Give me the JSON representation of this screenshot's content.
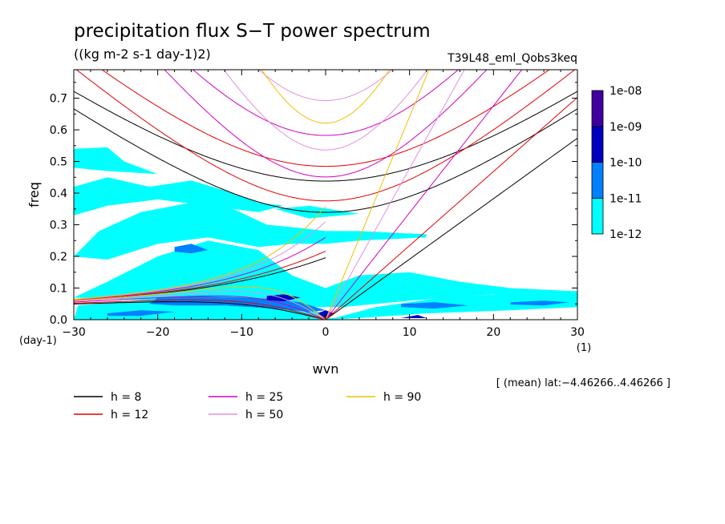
{
  "chart_data": {
    "type": "heatmap",
    "title": "precipitation flux S−T power spectrum",
    "subtitle": "((kg m-2 s-1 day-1)2)",
    "experiment": "T39L48_eml_Qobs3keq",
    "xlabel": "wvn",
    "ylabel": "freq",
    "x_unit": "(1)",
    "y_unit": "(day-1)",
    "xlim": [
      -30,
      30
    ],
    "ylim": [
      0,
      0.79
    ],
    "x_ticks": [
      "−30",
      "−20",
      "−10",
      "0",
      "10",
      "20",
      "30"
    ],
    "x_tick_values": [
      -30,
      -20,
      -10,
      0,
      10,
      20,
      30
    ],
    "y_ticks": [
      "0.0",
      "0.1",
      "0.2",
      "0.3",
      "0.4",
      "0.5",
      "0.6",
      "0.7"
    ],
    "y_tick_values": [
      0,
      0.1,
      0.2,
      0.3,
      0.4,
      0.5,
      0.6,
      0.7
    ],
    "annotation": "[ (mean) lat:−4.46266..4.46266 ]",
    "colorbar": {
      "labels": [
        "1e-12",
        "1e-11",
        "1e-10",
        "1e-09",
        "1e-08"
      ],
      "colors": [
        "#00ffff",
        "#0080ff",
        "#0000c0",
        "#4000a0"
      ]
    },
    "contour_regions": [
      {
        "level": 0,
        "polygon": [
          [
            -29.5,
            0.045
          ],
          [
            -24,
            0.058
          ],
          [
            -14,
            0.07
          ],
          [
            -6,
            0.072
          ],
          [
            -2,
            0.05
          ],
          [
            0,
            0.005
          ],
          [
            1,
            0.005
          ],
          [
            6,
            0.04
          ],
          [
            14,
            0.07
          ],
          [
            24,
            0.085
          ],
          [
            30,
            0.09
          ],
          [
            30,
            0.04
          ],
          [
            22,
            0.03
          ],
          [
            12,
            0.02
          ],
          [
            4,
            0.005
          ],
          [
            0,
            0
          ],
          [
            -30,
            0
          ]
        ]
      },
      {
        "level": 0,
        "polygon": [
          [
            -30,
            0.07
          ],
          [
            -26,
            0.12
          ],
          [
            -20,
            0.2
          ],
          [
            -14,
            0.25
          ],
          [
            -8,
            0.22
          ],
          [
            -4,
            0.14
          ],
          [
            0,
            0.1
          ],
          [
            4,
            0.14
          ],
          [
            10,
            0.15
          ],
          [
            16,
            0.12
          ],
          [
            22,
            0.1
          ],
          [
            30,
            0.09
          ],
          [
            30,
            0.07
          ],
          [
            20,
            0.08
          ],
          [
            10,
            0.06
          ],
          [
            2,
            0.04
          ],
          [
            -2,
            0.04
          ],
          [
            -10,
            0.06
          ],
          [
            -20,
            0.06
          ]
        ]
      },
      {
        "level": 0,
        "polygon": [
          [
            -30,
            0.2
          ],
          [
            -27,
            0.28
          ],
          [
            -22,
            0.34
          ],
          [
            -16,
            0.37
          ],
          [
            -11,
            0.35
          ],
          [
            -7,
            0.3
          ],
          [
            -3,
            0.29
          ],
          [
            0,
            0.28
          ],
          [
            4,
            0.28
          ],
          [
            12,
            0.27
          ],
          [
            12,
            0.26
          ],
          [
            4,
            0.25
          ],
          [
            0,
            0.24
          ],
          [
            -4,
            0.24
          ],
          [
            -8,
            0.23
          ],
          [
            -14,
            0.26
          ],
          [
            -20,
            0.24
          ],
          [
            -26,
            0.19
          ]
        ]
      },
      {
        "level": 0,
        "polygon": [
          [
            -30,
            0.42
          ],
          [
            -26,
            0.45
          ],
          [
            -21,
            0.42
          ],
          [
            -16,
            0.44
          ],
          [
            -11,
            0.4
          ],
          [
            -8,
            0.37
          ],
          [
            -5,
            0.36
          ],
          [
            -8,
            0.34
          ],
          [
            -14,
            0.36
          ],
          [
            -20,
            0.38
          ],
          [
            -26,
            0.36
          ],
          [
            -30,
            0.33
          ]
        ]
      },
      {
        "level": 0,
        "polygon": [
          [
            -30,
            0.54
          ],
          [
            -26,
            0.545
          ],
          [
            -24,
            0.5
          ],
          [
            -20,
            0.46
          ],
          [
            -26,
            0.47
          ],
          [
            -30,
            0.48
          ]
        ]
      },
      {
        "level": 0,
        "polygon": [
          [
            -6,
            0.35
          ],
          [
            -2,
            0.36
          ],
          [
            4,
            0.335
          ],
          [
            -2,
            0.32
          ]
        ]
      },
      {
        "level": 1,
        "polygon": [
          [
            -20,
            0.07
          ],
          [
            -15,
            0.075
          ],
          [
            -10,
            0.07
          ],
          [
            -6,
            0.065
          ],
          [
            -3,
            0.055
          ],
          [
            0,
            0.03
          ],
          [
            -2,
            0.025
          ],
          [
            -6,
            0.035
          ],
          [
            -12,
            0.045
          ],
          [
            -18,
            0.045
          ],
          [
            -21,
            0.05
          ]
        ]
      },
      {
        "level": 1,
        "polygon": [
          [
            -18,
            0.23
          ],
          [
            -16,
            0.24
          ],
          [
            -14,
            0.22
          ],
          [
            -16,
            0.21
          ],
          [
            -18,
            0.215
          ]
        ]
      },
      {
        "level": 1,
        "polygon": [
          [
            9,
            0.05
          ],
          [
            13,
            0.055
          ],
          [
            17,
            0.045
          ],
          [
            13,
            0.035
          ],
          [
            9,
            0.04
          ]
        ]
      },
      {
        "level": 1,
        "polygon": [
          [
            22,
            0.055
          ],
          [
            26,
            0.06
          ],
          [
            29,
            0.055
          ],
          [
            26,
            0.045
          ],
          [
            22,
            0.048
          ]
        ]
      },
      {
        "level": 1,
        "polygon": [
          [
            -26,
            0.02
          ],
          [
            -22,
            0.03
          ],
          [
            -18,
            0.025
          ],
          [
            -22,
            0.012
          ],
          [
            -26,
            0.012
          ]
        ]
      },
      {
        "level": 2,
        "polygon": [
          [
            -7,
            0.075
          ],
          [
            -5,
            0.08
          ],
          [
            -3,
            0.07
          ],
          [
            -5,
            0.058
          ],
          [
            -7,
            0.062
          ]
        ]
      },
      {
        "level": 2,
        "polygon": [
          [
            -1,
            0.02
          ],
          [
            0,
            0.03
          ],
          [
            1,
            0.02
          ],
          [
            0,
            0.005
          ]
        ]
      },
      {
        "level": 2,
        "polygon": [
          [
            9,
            0.005
          ],
          [
            11,
            0.015
          ],
          [
            12,
            0.005
          ]
        ]
      },
      {
        "level": 3,
        "polygon": [
          [
            -0.5,
            0.008
          ],
          [
            0,
            0.012
          ],
          [
            0.5,
            0.008
          ],
          [
            0,
            0.002
          ]
        ]
      }
    ],
    "series": [
      {
        "name": "h =  8",
        "color": "#000000",
        "h": 8
      },
      {
        "name": "h = 12",
        "color": "#e00000",
        "h": 12
      },
      {
        "name": "h = 25",
        "color": "#d000c0",
        "h": 25
      },
      {
        "name": "h = 50",
        "color": "#e090e0",
        "h": 50
      },
      {
        "name": "h = 90",
        "color": "#f0c000",
        "h": 90
      }
    ]
  }
}
